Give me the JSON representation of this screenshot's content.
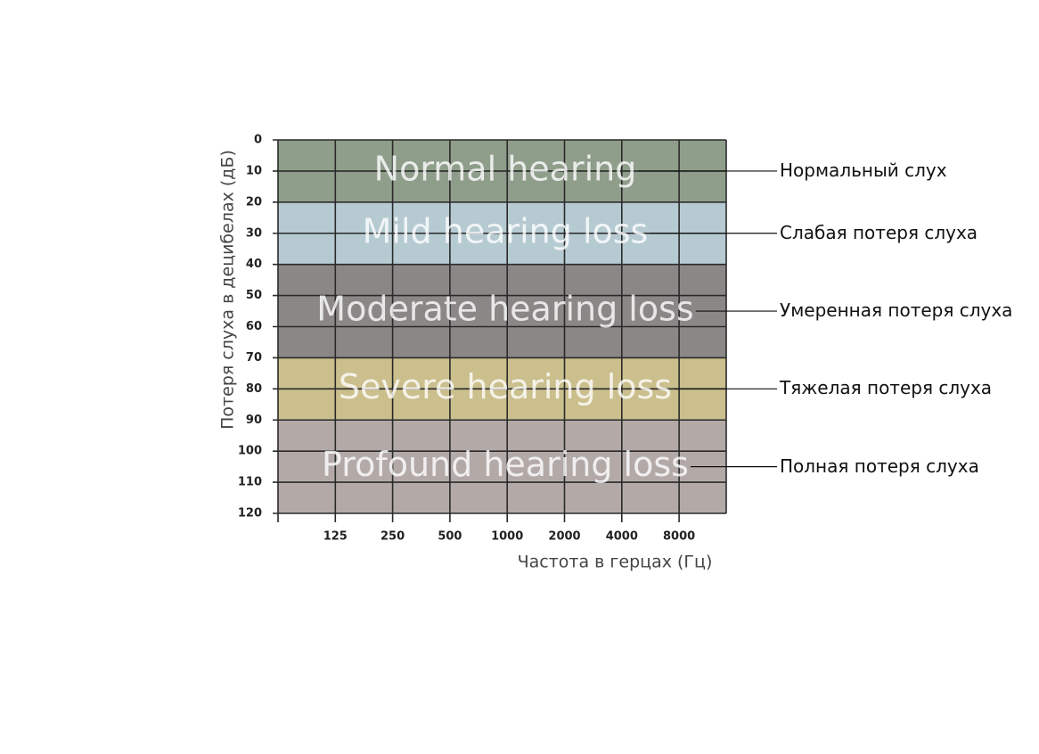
{
  "chart_data": {
    "type": "band",
    "y_label": "Потеря слуха в децибелах (дБ)",
    "x_label": "Частота в герцах (Гц)",
    "categories": [
      "125",
      "250",
      "500",
      "1000",
      "2000",
      "4000",
      "8000"
    ],
    "ylim": [
      0,
      120
    ],
    "y_inverted": true,
    "yticks": [
      0,
      10,
      20,
      30,
      40,
      50,
      60,
      70,
      80,
      90,
      100,
      110,
      120
    ],
    "grid": true,
    "bands": [
      {
        "name": "Normal hearing",
        "label": "Нормальный слух",
        "from": 0,
        "to": 20,
        "color": "#8f9e8b"
      },
      {
        "name": "Mild hearing loss",
        "label": "Слабая потеря слуха",
        "from": 20,
        "to": 40,
        "color": "#b6cad2"
      },
      {
        "name": "Moderate hearing loss",
        "label": "Умеренная потеря слуха",
        "from": 40,
        "to": 70,
        "color": "#8c8787"
      },
      {
        "name": "Severe hearing loss",
        "label": "Тяжелая потеря слуха",
        "from": 70,
        "to": 90,
        "color": "#cbbf8d"
      },
      {
        "name": "Profound hearing loss",
        "label": "Полная потеря слуха",
        "from": 90,
        "to": 120,
        "color": "#b3aaa8"
      }
    ]
  }
}
